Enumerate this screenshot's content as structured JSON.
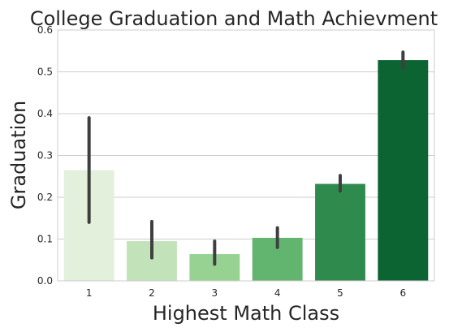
{
  "chart_data": {
    "type": "bar",
    "title": "College Graduation and Math Achievment",
    "xlabel": "Highest Math Class",
    "ylabel": "Graduation",
    "categories": [
      "1",
      "2",
      "3",
      "4",
      "5",
      "6"
    ],
    "values": [
      0.265,
      0.095,
      0.064,
      0.103,
      0.232,
      0.528
    ],
    "error_low": [
      0.14,
      0.055,
      0.04,
      0.08,
      0.215,
      0.51
    ],
    "error_high": [
      0.39,
      0.142,
      0.095,
      0.127,
      0.252,
      0.547
    ],
    "ylim": [
      0,
      0.6
    ],
    "yticks": [
      "0.0",
      "0.1",
      "0.2",
      "0.3",
      "0.4",
      "0.5",
      "0.6"
    ],
    "grid": true,
    "colors": [
      "#e2f0dc",
      "#c2e2b9",
      "#98d293",
      "#62b56e",
      "#2f8b4d",
      "#0b6431"
    ],
    "error_color": "#3f3f3f",
    "grid_color": "#cccccc",
    "frame_color": "#cccccc"
  }
}
